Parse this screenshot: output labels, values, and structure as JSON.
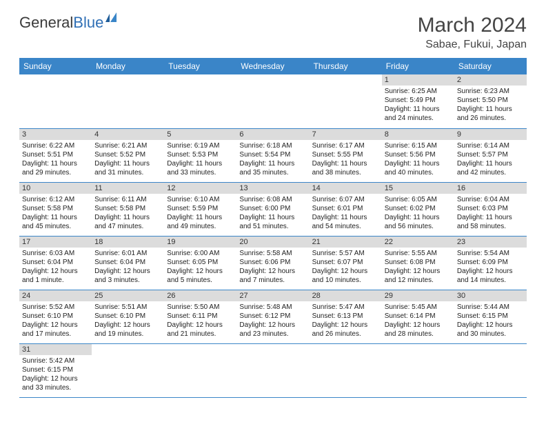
{
  "logo": {
    "text1": "General",
    "text2": "Blue"
  },
  "title": "March 2024",
  "location": "Sabae, Fukui, Japan",
  "headers": [
    "Sunday",
    "Monday",
    "Tuesday",
    "Wednesday",
    "Thursday",
    "Friday",
    "Saturday"
  ],
  "colors": {
    "header_bg": "#3a85c8",
    "header_fg": "#ffffff",
    "daynum_bg": "#dcdcdc",
    "border": "#3a85c8",
    "logo_blue": "#2f6fb5"
  },
  "weeks": [
    [
      null,
      null,
      null,
      null,
      null,
      {
        "n": "1",
        "sr": "Sunrise: 6:25 AM",
        "ss": "Sunset: 5:49 PM",
        "dl": "Daylight: 11 hours and 24 minutes."
      },
      {
        "n": "2",
        "sr": "Sunrise: 6:23 AM",
        "ss": "Sunset: 5:50 PM",
        "dl": "Daylight: 11 hours and 26 minutes."
      }
    ],
    [
      {
        "n": "3",
        "sr": "Sunrise: 6:22 AM",
        "ss": "Sunset: 5:51 PM",
        "dl": "Daylight: 11 hours and 29 minutes."
      },
      {
        "n": "4",
        "sr": "Sunrise: 6:21 AM",
        "ss": "Sunset: 5:52 PM",
        "dl": "Daylight: 11 hours and 31 minutes."
      },
      {
        "n": "5",
        "sr": "Sunrise: 6:19 AM",
        "ss": "Sunset: 5:53 PM",
        "dl": "Daylight: 11 hours and 33 minutes."
      },
      {
        "n": "6",
        "sr": "Sunrise: 6:18 AM",
        "ss": "Sunset: 5:54 PM",
        "dl": "Daylight: 11 hours and 35 minutes."
      },
      {
        "n": "7",
        "sr": "Sunrise: 6:17 AM",
        "ss": "Sunset: 5:55 PM",
        "dl": "Daylight: 11 hours and 38 minutes."
      },
      {
        "n": "8",
        "sr": "Sunrise: 6:15 AM",
        "ss": "Sunset: 5:56 PM",
        "dl": "Daylight: 11 hours and 40 minutes."
      },
      {
        "n": "9",
        "sr": "Sunrise: 6:14 AM",
        "ss": "Sunset: 5:57 PM",
        "dl": "Daylight: 11 hours and 42 minutes."
      }
    ],
    [
      {
        "n": "10",
        "sr": "Sunrise: 6:12 AM",
        "ss": "Sunset: 5:58 PM",
        "dl": "Daylight: 11 hours and 45 minutes."
      },
      {
        "n": "11",
        "sr": "Sunrise: 6:11 AM",
        "ss": "Sunset: 5:58 PM",
        "dl": "Daylight: 11 hours and 47 minutes."
      },
      {
        "n": "12",
        "sr": "Sunrise: 6:10 AM",
        "ss": "Sunset: 5:59 PM",
        "dl": "Daylight: 11 hours and 49 minutes."
      },
      {
        "n": "13",
        "sr": "Sunrise: 6:08 AM",
        "ss": "Sunset: 6:00 PM",
        "dl": "Daylight: 11 hours and 51 minutes."
      },
      {
        "n": "14",
        "sr": "Sunrise: 6:07 AM",
        "ss": "Sunset: 6:01 PM",
        "dl": "Daylight: 11 hours and 54 minutes."
      },
      {
        "n": "15",
        "sr": "Sunrise: 6:05 AM",
        "ss": "Sunset: 6:02 PM",
        "dl": "Daylight: 11 hours and 56 minutes."
      },
      {
        "n": "16",
        "sr": "Sunrise: 6:04 AM",
        "ss": "Sunset: 6:03 PM",
        "dl": "Daylight: 11 hours and 58 minutes."
      }
    ],
    [
      {
        "n": "17",
        "sr": "Sunrise: 6:03 AM",
        "ss": "Sunset: 6:04 PM",
        "dl": "Daylight: 12 hours and 1 minute."
      },
      {
        "n": "18",
        "sr": "Sunrise: 6:01 AM",
        "ss": "Sunset: 6:04 PM",
        "dl": "Daylight: 12 hours and 3 minutes."
      },
      {
        "n": "19",
        "sr": "Sunrise: 6:00 AM",
        "ss": "Sunset: 6:05 PM",
        "dl": "Daylight: 12 hours and 5 minutes."
      },
      {
        "n": "20",
        "sr": "Sunrise: 5:58 AM",
        "ss": "Sunset: 6:06 PM",
        "dl": "Daylight: 12 hours and 7 minutes."
      },
      {
        "n": "21",
        "sr": "Sunrise: 5:57 AM",
        "ss": "Sunset: 6:07 PM",
        "dl": "Daylight: 12 hours and 10 minutes."
      },
      {
        "n": "22",
        "sr": "Sunrise: 5:55 AM",
        "ss": "Sunset: 6:08 PM",
        "dl": "Daylight: 12 hours and 12 minutes."
      },
      {
        "n": "23",
        "sr": "Sunrise: 5:54 AM",
        "ss": "Sunset: 6:09 PM",
        "dl": "Daylight: 12 hours and 14 minutes."
      }
    ],
    [
      {
        "n": "24",
        "sr": "Sunrise: 5:52 AM",
        "ss": "Sunset: 6:10 PM",
        "dl": "Daylight: 12 hours and 17 minutes."
      },
      {
        "n": "25",
        "sr": "Sunrise: 5:51 AM",
        "ss": "Sunset: 6:10 PM",
        "dl": "Daylight: 12 hours and 19 minutes."
      },
      {
        "n": "26",
        "sr": "Sunrise: 5:50 AM",
        "ss": "Sunset: 6:11 PM",
        "dl": "Daylight: 12 hours and 21 minutes."
      },
      {
        "n": "27",
        "sr": "Sunrise: 5:48 AM",
        "ss": "Sunset: 6:12 PM",
        "dl": "Daylight: 12 hours and 23 minutes."
      },
      {
        "n": "28",
        "sr": "Sunrise: 5:47 AM",
        "ss": "Sunset: 6:13 PM",
        "dl": "Daylight: 12 hours and 26 minutes."
      },
      {
        "n": "29",
        "sr": "Sunrise: 5:45 AM",
        "ss": "Sunset: 6:14 PM",
        "dl": "Daylight: 12 hours and 28 minutes."
      },
      {
        "n": "30",
        "sr": "Sunrise: 5:44 AM",
        "ss": "Sunset: 6:15 PM",
        "dl": "Daylight: 12 hours and 30 minutes."
      }
    ],
    [
      {
        "n": "31",
        "sr": "Sunrise: 5:42 AM",
        "ss": "Sunset: 6:15 PM",
        "dl": "Daylight: 12 hours and 33 minutes."
      },
      null,
      null,
      null,
      null,
      null,
      null
    ]
  ]
}
